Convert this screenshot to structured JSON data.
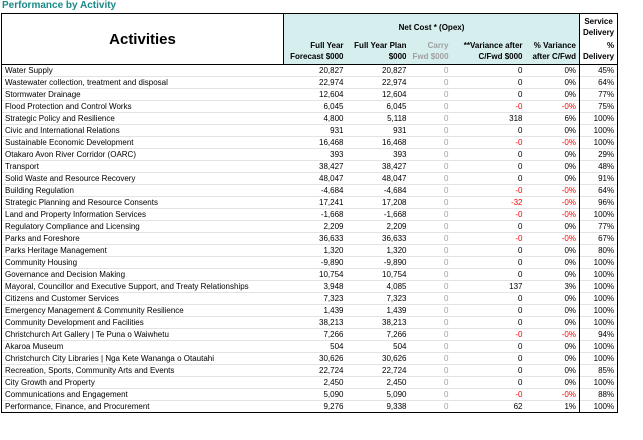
{
  "title": "Performance by Activity",
  "header": {
    "activities": "Activities",
    "net_cost": "Net Cost * (Opex)",
    "service_delivery": "Service Delivery",
    "col_forecast": "Full Year Forecast $000",
    "col_plan": "Full Year Plan $000",
    "col_carry": "Carry Fwd $000",
    "col_variance": "**Variance after C/Fwd $000",
    "col_pct_variance": "% Variance after C/Fwd",
    "col_pct_delivery": "% Delivery"
  },
  "colors": {
    "title": "#1a8a88",
    "header_bg": "#d6eeee",
    "negative": "#ff0000",
    "muted": "#a0a0a0"
  },
  "rows": [
    {
      "activity": "Water Supply",
      "forecast": "20,827",
      "plan": "20,827",
      "carry": "0",
      "variance": "0",
      "pct_var": "0%",
      "delivery": "45%"
    },
    {
      "activity": "Wastewater collection, treatment and disposal",
      "forecast": "22,974",
      "plan": "22,974",
      "carry": "0",
      "variance": "0",
      "pct_var": "0%",
      "delivery": "64%"
    },
    {
      "activity": "Stormwater Drainage",
      "forecast": "12,604",
      "plan": "12,604",
      "carry": "0",
      "variance": "0",
      "pct_var": "0%",
      "delivery": "77%"
    },
    {
      "activity": "Flood Protection and Control Works",
      "forecast": "6,045",
      "plan": "6,045",
      "carry": "0",
      "variance": "-0",
      "pct_var": "-0%",
      "delivery": "75%",
      "neg": true
    },
    {
      "activity": "Strategic Policy and Resilience",
      "forecast": "4,800",
      "plan": "5,118",
      "carry": "0",
      "variance": "318",
      "pct_var": "6%",
      "delivery": "100%"
    },
    {
      "activity": "Civic and International Relations",
      "forecast": "931",
      "plan": "931",
      "carry": "0",
      "variance": "0",
      "pct_var": "0%",
      "delivery": "100%"
    },
    {
      "activity": "Sustainable Economic Development",
      "forecast": "16,468",
      "plan": "16,468",
      "carry": "0",
      "variance": "-0",
      "pct_var": "-0%",
      "delivery": "100%",
      "neg": true
    },
    {
      "activity": "Otakaro Avon River Corridor (OARC)",
      "forecast": "393",
      "plan": "393",
      "carry": "0",
      "variance": "0",
      "pct_var": "0%",
      "delivery": "29%"
    },
    {
      "activity": "Transport",
      "forecast": "38,427",
      "plan": "38,427",
      "carry": "0",
      "variance": "0",
      "pct_var": "0%",
      "delivery": "48%"
    },
    {
      "activity": "Solid Waste and Resource Recovery",
      "forecast": "48,047",
      "plan": "48,047",
      "carry": "0",
      "variance": "0",
      "pct_var": "0%",
      "delivery": "91%"
    },
    {
      "activity": "Building Regulation",
      "forecast": "-4,684",
      "plan": "-4,684",
      "carry": "0",
      "variance": "-0",
      "pct_var": "-0%",
      "delivery": "64%",
      "neg": true
    },
    {
      "activity": "Strategic Planning and Resource Consents",
      "forecast": "17,241",
      "plan": "17,208",
      "carry": "0",
      "variance": "-32",
      "pct_var": "-0%",
      "delivery": "96%",
      "neg": true
    },
    {
      "activity": "Land and Property Information Services",
      "forecast": "-1,668",
      "plan": "-1,668",
      "carry": "0",
      "variance": "-0",
      "pct_var": "-0%",
      "delivery": "100%",
      "neg": true
    },
    {
      "activity": "Regulatory Compliance and Licensing",
      "forecast": "2,209",
      "plan": "2,209",
      "carry": "0",
      "variance": "0",
      "pct_var": "0%",
      "delivery": "77%"
    },
    {
      "activity": "Parks and Foreshore",
      "forecast": "36,633",
      "plan": "36,633",
      "carry": "0",
      "variance": "-0",
      "pct_var": "-0%",
      "delivery": "67%",
      "neg": true
    },
    {
      "activity": "Parks Heritage Management",
      "forecast": "1,320",
      "plan": "1,320",
      "carry": "0",
      "variance": "0",
      "pct_var": "0%",
      "delivery": "80%"
    },
    {
      "activity": "Community Housing",
      "forecast": "-9,890",
      "plan": "-9,890",
      "carry": "0",
      "variance": "0",
      "pct_var": "0%",
      "delivery": "100%"
    },
    {
      "activity": "Governance and Decision Making",
      "forecast": "10,754",
      "plan": "10,754",
      "carry": "0",
      "variance": "0",
      "pct_var": "0%",
      "delivery": "100%"
    },
    {
      "activity": "Mayoral, Councillor and Executive Support, and Treaty Relationships",
      "forecast": "3,948",
      "plan": "4,085",
      "carry": "0",
      "variance": "137",
      "pct_var": "3%",
      "delivery": "100%"
    },
    {
      "activity": "Citizens and Customer Services",
      "forecast": "7,323",
      "plan": "7,323",
      "carry": "0",
      "variance": "0",
      "pct_var": "0%",
      "delivery": "100%"
    },
    {
      "activity": "Emergency Management & Community Resilience",
      "forecast": "1,439",
      "plan": "1,439",
      "carry": "0",
      "variance": "0",
      "pct_var": "0%",
      "delivery": "100%"
    },
    {
      "activity": "Community Development and Facilities",
      "forecast": "38,213",
      "plan": "38,213",
      "carry": "0",
      "variance": "0",
      "pct_var": "0%",
      "delivery": "100%"
    },
    {
      "activity": "Christchurch Art Gallery | Te Puna o Waiwhetu",
      "forecast": "7,266",
      "plan": "7,266",
      "carry": "0",
      "variance": "-0",
      "pct_var": "-0%",
      "delivery": "94%",
      "neg": true
    },
    {
      "activity": "Akaroa Museum",
      "forecast": "504",
      "plan": "504",
      "carry": "0",
      "variance": "0",
      "pct_var": "0%",
      "delivery": "100%"
    },
    {
      "activity": "Christchurch City Libraries | Nga Kete Wananga o Otautahi",
      "forecast": "30,626",
      "plan": "30,626",
      "carry": "0",
      "variance": "0",
      "pct_var": "0%",
      "delivery": "100%"
    },
    {
      "activity": "Recreation, Sports, Community Arts and Events",
      "forecast": "22,724",
      "plan": "22,724",
      "carry": "0",
      "variance": "0",
      "pct_var": "0%",
      "delivery": "85%"
    },
    {
      "activity": "City Growth and Property",
      "forecast": "2,450",
      "plan": "2,450",
      "carry": "0",
      "variance": "0",
      "pct_var": "0%",
      "delivery": "100%"
    },
    {
      "activity": "Communications and Engagement",
      "forecast": "5,090",
      "plan": "5,090",
      "carry": "0",
      "variance": "-0",
      "pct_var": "-0%",
      "delivery": "88%",
      "neg": true
    },
    {
      "activity": "Performance, Finance, and Procurement",
      "forecast": "9,276",
      "plan": "9,338",
      "carry": "0",
      "variance": "62",
      "pct_var": "1%",
      "delivery": "100%"
    }
  ]
}
